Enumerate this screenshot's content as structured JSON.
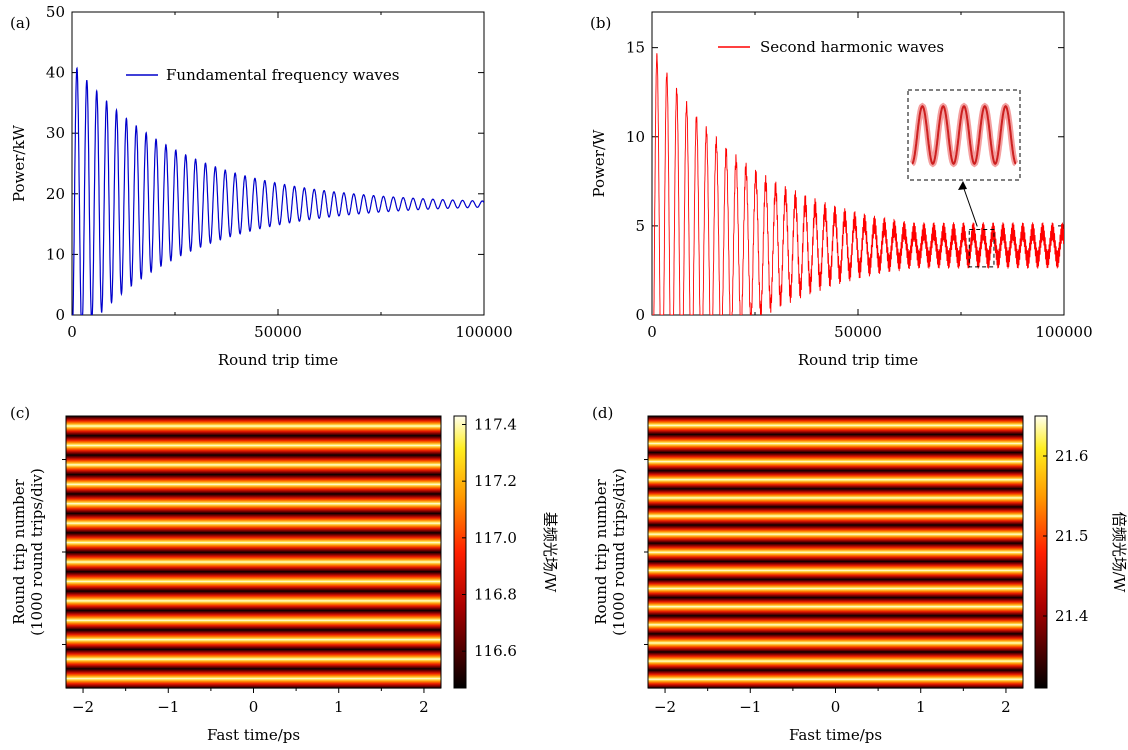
{
  "chart_data": [
    {
      "panel": "(a)",
      "type": "line",
      "xlabel": "Round trip time",
      "ylabel": "Power/kW",
      "xlim": [
        0,
        100000
      ],
      "ylim": [
        0,
        50
      ],
      "xticks": [
        0,
        50000,
        100000
      ],
      "xtick_labels": [
        "0",
        "50000",
        "100000"
      ],
      "yticks": [
        0,
        10,
        20,
        30,
        40,
        50
      ],
      "ytick_labels": [
        "0",
        "10",
        "20",
        "30",
        "40",
        "50"
      ],
      "grid": false,
      "legend_position": "top-right",
      "series": [
        {
          "name": "Fundamental frequency waves",
          "color": "#0000cc",
          "mean": 18.3,
          "initial_amplitude": 23.5,
          "oscillation_period": 2400,
          "final_amplitude": 0.4,
          "start_value": 0,
          "first_peak": 41.7,
          "end_value": 18.3
        }
      ]
    },
    {
      "panel": "(b)",
      "type": "line",
      "xlabel": "Round trip time",
      "ylabel": "Power/W",
      "xlim": [
        0,
        100000
      ],
      "ylim": [
        0,
        17
      ],
      "xticks": [
        0,
        50000,
        100000
      ],
      "xtick_labels": [
        "0",
        "50000",
        "100000"
      ],
      "yticks": [
        0,
        5,
        10,
        15
      ],
      "ytick_labels": [
        "0",
        "5",
        "10",
        "15"
      ],
      "grid": false,
      "legend_position": "top-right",
      "series": [
        {
          "name": "Second harmonic waves",
          "color": "#ff0000",
          "mean": 3.9,
          "first_peak": 15,
          "oscillation_period": 2400,
          "end_band": [
            2.7,
            4.6
          ]
        }
      ],
      "inset": {
        "type": "zoomed line",
        "source_range_x": [
          77000,
          83000
        ],
        "source_range_y": [
          2.7,
          4.8
        ],
        "cycles": 5
      }
    },
    {
      "panel": "(c)",
      "type": "heatmap",
      "xlabel": "Fast time/ps",
      "ylabel": "Round trip number\n(1000 round trips/div)",
      "xlim": [
        -2.2,
        2.2
      ],
      "xticks": [
        -2,
        -1,
        0,
        1,
        2
      ],
      "xtick_labels": [
        "−2",
        "−1",
        "0",
        "1",
        "2"
      ],
      "colorbar": {
        "label": "基频光场/W",
        "range": [
          116.47,
          117.43
        ],
        "ticks": [
          116.6,
          116.8,
          117.0,
          117.2,
          117.4
        ],
        "tick_labels": [
          "116.6",
          "116.8",
          "117.0",
          "117.2",
          "117.4"
        ],
        "colormap": "hot"
      },
      "stripe_count": 14
    },
    {
      "panel": "(d)",
      "type": "heatmap",
      "xlabel": "Fast time/ps",
      "ylabel": "Round trip number\n(1000 round trips/div)",
      "xlim": [
        -2.2,
        2.2
      ],
      "xticks": [
        -2,
        -1,
        0,
        1,
        2
      ],
      "xtick_labels": [
        "−2",
        "−1",
        "0",
        "1",
        "2"
      ],
      "colorbar": {
        "label": "倍频光场/W",
        "range": [
          21.31,
          21.65
        ],
        "ticks": [
          21.4,
          21.5,
          21.6
        ],
        "tick_labels": [
          "21.4",
          "21.5",
          "21.6"
        ],
        "colormap": "hot"
      },
      "stripe_count": 15
    }
  ]
}
